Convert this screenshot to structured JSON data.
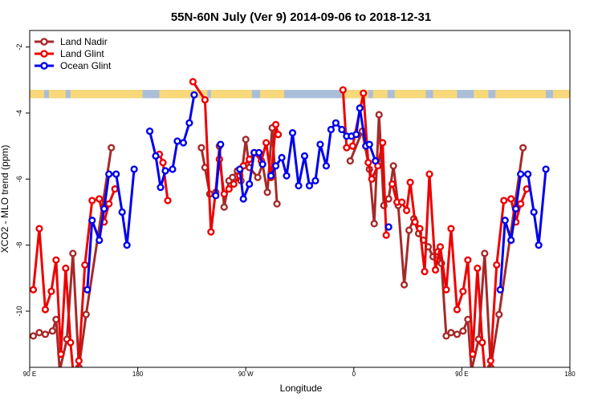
{
  "chart_data": {
    "type": "line",
    "title": "55N-60N July (Ver 9)   2014-09-06 to 2018-12-31",
    "xlabel": "Longitude",
    "ylabel": "XCO2 - MLO trend (ppm)",
    "x_ticks": [
      {
        "lon": 90,
        "label": "90 E"
      },
      {
        "lon": 180,
        "label": "180"
      },
      {
        "lon": 270,
        "label": "90 W"
      },
      {
        "lon": 360,
        "label": "0"
      },
      {
        "lon": 450,
        "label": "90 E"
      },
      {
        "lon": 540,
        "label": "180"
      }
    ],
    "y_ticks": [
      {
        "value": -2,
        "label": "-2"
      },
      {
        "value": -4,
        "label": "-4"
      },
      {
        "value": -6,
        "label": "-6"
      },
      {
        "value": -8,
        "label": "-8"
      },
      {
        "value": -10,
        "label": "-10"
      }
    ],
    "xlim": [
      90,
      540
    ],
    "ylim": [
      -11.7,
      -1.5
    ],
    "grid": false,
    "legend_position": "top-left",
    "land_band": {
      "y_range": [
        -3.55,
        -3.3
      ],
      "ocean_color": "#aabed8",
      "land_color": "#f8d878",
      "land_segments": [
        [
          90,
          102
        ],
        [
          106,
          120
        ],
        [
          124,
          184
        ],
        [
          198,
          238
        ],
        [
          241,
          275
        ],
        [
          282,
          302
        ],
        [
          350,
          372
        ],
        [
          376,
          388
        ],
        [
          394,
          420
        ],
        [
          426,
          446
        ],
        [
          460,
          472
        ],
        [
          478,
          520
        ],
        [
          526,
          540
        ]
      ]
    },
    "series": [
      {
        "name": "Land Nadir",
        "color": "#a52a2a",
        "segments": [
          [
            [
              93,
              -10.75
            ],
            [
              98,
              -10.65
            ],
            [
              103,
              -10.7
            ],
            [
              109,
              -10.6
            ],
            [
              112,
              -10.25
            ],
            [
              115,
              -11.8
            ],
            [
              121,
              -10.85
            ],
            [
              126,
              -8.25
            ],
            [
              131,
              -11.7
            ],
            [
              137,
              -10.1
            ],
            [
              158,
              -5.05
            ]
          ],
          [
            [
              233,
              -5.05
            ],
            [
              236,
              -5.65
            ],
            [
              240,
              -6.45
            ],
            [
              245,
              -6.4
            ],
            [
              248,
              -5.0
            ],
            [
              252,
              -6.85
            ],
            [
              256,
              -6.05
            ],
            [
              259,
              -5.95
            ],
            [
              263,
              -5.75
            ],
            [
              266,
              -6.05
            ],
            [
              270,
              -4.8
            ],
            [
              273,
              -5.65
            ],
            [
              280,
              -5.95
            ],
            [
              284,
              -5.55
            ],
            [
              288,
              -6.4
            ],
            [
              292,
              -4.45
            ],
            [
              296,
              -6.75
            ]
          ],
          [
            [
              357,
              -5.45
            ],
            [
              367,
              -4.55
            ],
            [
              373,
              -5.7
            ],
            [
              377,
              -7.35
            ],
            [
              381,
              -4.05
            ],
            [
              385,
              -6.8
            ],
            [
              389,
              -6.6
            ],
            [
              393,
              -5.6
            ],
            [
              397,
              -6.8
            ],
            [
              402,
              -9.2
            ],
            [
              406,
              -7.55
            ],
            [
              410,
              -7.2
            ],
            [
              414,
              -7.65
            ],
            [
              418,
              -7.85
            ],
            [
              422,
              -8.05
            ],
            [
              426,
              -8.35
            ],
            [
              430,
              -8.2
            ],
            [
              433,
              -8.55
            ],
            [
              437,
              -10.75
            ],
            [
              441,
              -10.65
            ],
            [
              446,
              -10.7
            ],
            [
              451,
              -10.6
            ],
            [
              455,
              -10.25
            ],
            [
              458,
              -11.8
            ],
            [
              464,
              -10.85
            ],
            [
              469,
              -8.25
            ],
            [
              474,
              -11.7
            ],
            [
              481,
              -10.1
            ],
            [
              501,
              -5.05
            ]
          ]
        ]
      },
      {
        "name": "Land Glint",
        "color": "#ee0000",
        "segments": [
          [
            [
              93,
              -9.35
            ],
            [
              98,
              -7.5
            ],
            [
              103,
              -9.95
            ],
            [
              108,
              -9.4
            ],
            [
              112,
              -8.45
            ],
            [
              116,
              -11.3
            ],
            [
              120,
              -8.7
            ],
            [
              124,
              -10.95
            ],
            [
              129,
              -13.0
            ],
            [
              131,
              -11.5
            ],
            [
              136,
              -8.6
            ],
            [
              142,
              -6.65
            ],
            [
              148,
              -6.6
            ],
            [
              152,
              -7.3
            ],
            [
              156,
              -6.75
            ],
            [
              161,
              -6.3
            ]
          ],
          [
            [
              198,
              -5.25
            ],
            [
              201,
              -5.5
            ],
            [
              205,
              -6.65
            ]
          ],
          [
            [
              226,
              -3.05
            ],
            [
              236,
              -3.6
            ],
            [
              241,
              -7.6
            ],
            [
              248,
              -5.4
            ],
            [
              252,
              -6.45
            ],
            [
              256,
              -6.3
            ],
            [
              260,
              -6.15
            ],
            [
              265,
              -5.9
            ],
            [
              268,
              -5.6
            ],
            [
              273,
              -5.4
            ],
            [
              277,
              -5.2
            ],
            [
              283,
              -5.45
            ],
            [
              287,
              -4.9
            ],
            [
              291,
              -5.95
            ],
            [
              295,
              -4.35
            ],
            [
              297,
              -4.65
            ]
          ],
          [
            [
              351,
              -3.3
            ],
            [
              354,
              -5.05
            ],
            [
              359,
              -5.0
            ],
            [
              368,
              -3.4
            ],
            [
              372,
              -5.5
            ],
            [
              375,
              -6.0
            ],
            [
              380,
              -5.6
            ],
            [
              384,
              -4.9
            ],
            [
              387,
              -7.7
            ]
          ],
          [
            [
              392,
              -6.15
            ],
            [
              396,
              -6.7
            ],
            [
              400,
              -6.7
            ],
            [
              404,
              -6.95
            ],
            [
              407,
              -6.1
            ],
            [
              411,
              -7.3
            ],
            [
              415,
              -7.5
            ],
            [
              419,
              -8.8
            ],
            [
              423,
              -5.85
            ],
            [
              428,
              -8.75
            ],
            [
              432,
              -8.05
            ],
            [
              437,
              -9.35
            ],
            [
              441,
              -7.5
            ],
            [
              446,
              -9.95
            ],
            [
              451,
              -9.4
            ],
            [
              455,
              -8.45
            ],
            [
              459,
              -11.3
            ],
            [
              463,
              -8.7
            ],
            [
              467,
              -10.95
            ],
            [
              472,
              -13.0
            ],
            [
              474,
              -11.5
            ],
            [
              479,
              -8.6
            ],
            [
              485,
              -6.65
            ],
            [
              491,
              -6.6
            ],
            [
              495,
              -7.3
            ],
            [
              499,
              -6.75
            ],
            [
              504,
              -6.3
            ]
          ]
        ]
      },
      {
        "name": "Ocean Glint",
        "color": "#0000ee",
        "segments": [
          [
            [
              138,
              -9.35
            ],
            [
              142,
              -7.25
            ],
            [
              148,
              -7.85
            ],
            [
              152,
              -6.9
            ],
            [
              156,
              -5.85
            ],
            [
              162,
              -5.85
            ],
            [
              167,
              -7.0
            ],
            [
              171,
              -8.0
            ],
            [
              177,
              -5.7
            ]
          ],
          [
            [
              190,
              -4.55
            ],
            [
              195,
              -5.3
            ],
            [
              199,
              -6.25
            ],
            [
              203,
              -5.75
            ],
            [
              209,
              -5.7
            ],
            [
              213,
              -4.85
            ],
            [
              218,
              -4.9
            ],
            [
              223,
              -4.3
            ],
            [
              227,
              -3.45
            ]
          ],
          [
            [
              245,
              -6.5
            ],
            [
              249,
              -4.95
            ]
          ],
          [
            [
              265,
              -5.7
            ],
            [
              268,
              -6.6
            ],
            [
              273,
              -6.15
            ],
            [
              277,
              -5.2
            ],
            [
              281,
              -5.2
            ],
            [
              284,
              -5.55
            ]
          ],
          [
            [
              291,
              -5.9
            ],
            [
              295,
              -5.6
            ],
            [
              300,
              -5.35
            ],
            [
              304,
              -5.9
            ],
            [
              309,
              -4.6
            ],
            [
              314,
              -6.2
            ],
            [
              319,
              -5.3
            ],
            [
              323,
              -6.2
            ],
            [
              328,
              -6.05
            ],
            [
              332,
              -4.95
            ],
            [
              337,
              -5.6
            ],
            [
              341,
              -4.5
            ],
            [
              345,
              -4.3
            ],
            [
              350,
              -4.5
            ],
            [
              354,
              -4.7
            ],
            [
              358,
              -4.7
            ],
            [
              362,
              -4.65
            ],
            [
              365,
              -3.85
            ],
            [
              370,
              -5.0
            ],
            [
              373,
              -4.95
            ],
            [
              378,
              -5.45
            ]
          ],
          [
            [
              389,
              -7.45
            ]
          ],
          [
            [
              482,
              -9.35
            ],
            [
              486,
              -7.25
            ],
            [
              491,
              -7.85
            ],
            [
              495,
              -6.9
            ],
            [
              499,
              -5.85
            ],
            [
              505,
              -5.85
            ],
            [
              510,
              -7.0
            ],
            [
              514,
              -8.0
            ],
            [
              520,
              -5.7
            ]
          ]
        ]
      }
    ]
  }
}
